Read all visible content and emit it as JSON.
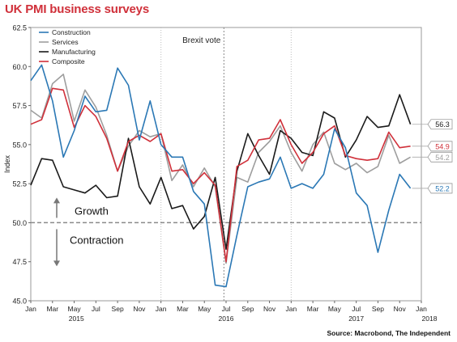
{
  "chart_data": {
    "type": "line",
    "title": "UK PMI business surveys",
    "ylabel": "Index",
    "xlabel": "",
    "ylim": [
      45.0,
      62.5
    ],
    "yticks": [
      "45.0",
      "47.5",
      "50.0",
      "52.5",
      "55.0",
      "57.5",
      "60.0",
      "62.5"
    ],
    "month_ticks": [
      "Jan",
      "Mar",
      "May",
      "Jul",
      "Sep",
      "Nov",
      "Jan",
      "Mar",
      "May",
      "Jul",
      "Sep",
      "Nov",
      "Jan",
      "Mar",
      "May",
      "Jul",
      "Sep",
      "Nov",
      "Jan"
    ],
    "year_labels": [
      "2015",
      "2016",
      "2017",
      "2018"
    ],
    "x": [
      "2015-01",
      "2015-02",
      "2015-03",
      "2015-04",
      "2015-05",
      "2015-06",
      "2015-07",
      "2015-08",
      "2015-09",
      "2015-10",
      "2015-11",
      "2015-12",
      "2016-01",
      "2016-02",
      "2016-03",
      "2016-04",
      "2016-05",
      "2016-06",
      "2016-07",
      "2016-08",
      "2016-09",
      "2016-10",
      "2016-11",
      "2016-12",
      "2017-01",
      "2017-02",
      "2017-03",
      "2017-04",
      "2017-05",
      "2017-06",
      "2017-07",
      "2017-08",
      "2017-09",
      "2017-10",
      "2017-11",
      "2017-12"
    ],
    "series": [
      {
        "name": "Construction",
        "color": "#2b78b5",
        "end_label": "52.2",
        "values": [
          59.1,
          60.1,
          57.8,
          54.2,
          55.9,
          58.1,
          57.1,
          57.2,
          59.9,
          58.8,
          55.3,
          57.8,
          55.0,
          54.2,
          54.2,
          52.0,
          51.2,
          46.0,
          45.9,
          49.2,
          52.3,
          52.6,
          52.8,
          54.2,
          52.2,
          52.5,
          52.2,
          53.1,
          56.0,
          54.8,
          51.9,
          51.1,
          48.1,
          50.8,
          53.1,
          52.2
        ]
      },
      {
        "name": "Services",
        "color": "#9e9e9e",
        "end_label": "54.2",
        "values": [
          57.2,
          56.7,
          58.9,
          59.5,
          56.5,
          58.5,
          57.4,
          55.6,
          53.3,
          54.9,
          55.9,
          55.5,
          55.7,
          52.7,
          53.7,
          52.3,
          53.5,
          52.3,
          47.4,
          52.9,
          52.6,
          54.5,
          55.2,
          56.2,
          54.5,
          53.3,
          55.0,
          55.8,
          53.8,
          53.4,
          53.8,
          53.2,
          53.6,
          55.6,
          53.8,
          54.2
        ]
      },
      {
        "name": "Manufacturing",
        "color": "#1a1a1a",
        "end_label": "56.3",
        "values": [
          52.4,
          54.1,
          54.0,
          52.3,
          52.1,
          51.9,
          52.4,
          51.6,
          51.7,
          55.4,
          52.3,
          51.2,
          52.9,
          50.9,
          51.1,
          49.6,
          50.4,
          52.9,
          48.3,
          53.3,
          55.7,
          54.3,
          53.1,
          55.9,
          55.4,
          54.5,
          54.3,
          57.1,
          56.7,
          54.2,
          55.3,
          56.8,
          56.1,
          56.2,
          58.2,
          56.3
        ]
      },
      {
        "name": "Composite",
        "color": "#d0303a",
        "end_label": "54.9",
        "values": [
          56.3,
          56.6,
          58.6,
          58.5,
          56.1,
          57.5,
          56.8,
          55.4,
          53.3,
          55.2,
          55.6,
          55.2,
          55.7,
          53.3,
          53.4,
          52.5,
          53.2,
          52.4,
          47.5,
          53.6,
          54.0,
          55.3,
          55.4,
          56.6,
          55.0,
          53.8,
          54.5,
          55.7,
          56.2,
          54.3,
          54.1,
          54.0,
          54.1,
          55.8,
          54.8,
          54.9
        ]
      }
    ],
    "legend_position": "top-left",
    "grid": false,
    "annotations": {
      "vline_label": "Brexit vote",
      "growth": "Growth",
      "contraction": "Contraction"
    },
    "reference_line": 50.0
  },
  "source": "Source: Macrobond, The Independent"
}
